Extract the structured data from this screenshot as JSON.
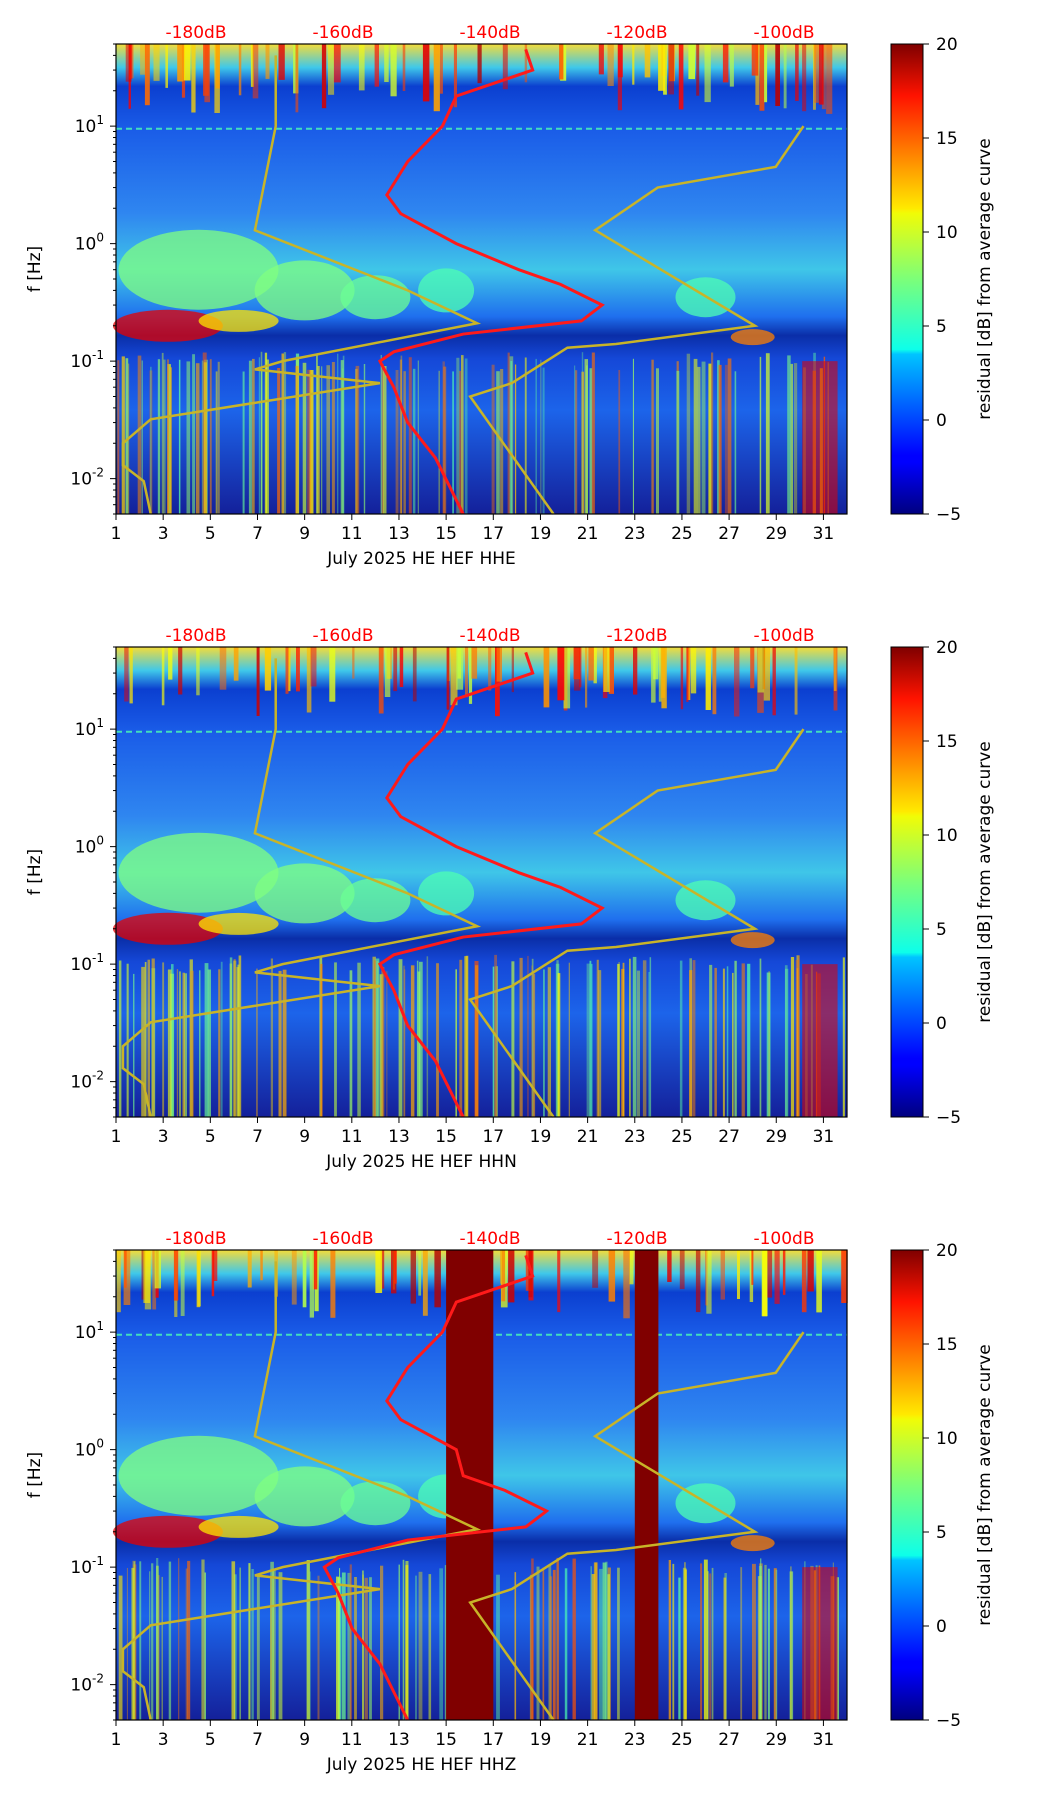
{
  "colors": {
    "model_curve": "#ff1a1a",
    "noise_models": "#c8b428",
    "db_label": "#ff0000",
    "gap": "#800000"
  },
  "colorbar": {
    "label": "residual [dB] from average curve",
    "ticks": [
      "20",
      "15",
      "10",
      "5",
      "0",
      "−5"
    ],
    "range": [
      -5,
      20
    ],
    "cmap": "jet"
  },
  "chart_data": [
    {
      "type": "heatmap",
      "title": "",
      "xlabel": "July 2025 HE HEF  HHE",
      "ylabel": "f [Hz]",
      "x_ticks": [
        "1",
        "3",
        "5",
        "7",
        "9",
        "11",
        "13",
        "15",
        "17",
        "19",
        "21",
        "23",
        "25",
        "27",
        "29",
        "31"
      ],
      "y_ticks": [
        "10^1",
        "10^0",
        "10^-1",
        "10^-2"
      ],
      "xlim": [
        1,
        32
      ],
      "ylim_hz": [
        0.005,
        50
      ],
      "top_axis_labels": [
        "-180dB",
        "-160dB",
        "-140dB",
        "-120dB",
        "-100dB"
      ],
      "gaps": []
    },
    {
      "type": "heatmap",
      "title": "",
      "xlabel": "July 2025 HE HEF  HHN",
      "ylabel": "f [Hz]",
      "x_ticks": [
        "1",
        "3",
        "5",
        "7",
        "9",
        "11",
        "13",
        "15",
        "17",
        "19",
        "21",
        "23",
        "25",
        "27",
        "29",
        "31"
      ],
      "y_ticks": [
        "10^1",
        "10^0",
        "10^-1",
        "10^-2"
      ],
      "xlim": [
        1,
        32
      ],
      "ylim_hz": [
        0.005,
        50
      ],
      "top_axis_labels": [
        "-180dB",
        "-160dB",
        "-140dB",
        "-120dB",
        "-100dB"
      ],
      "gaps": []
    },
    {
      "type": "heatmap",
      "title": "",
      "xlabel": "July 2025 HE HEF  HHZ",
      "ylabel": "f [Hz]",
      "x_ticks": [
        "1",
        "3",
        "5",
        "7",
        "9",
        "11",
        "13",
        "15",
        "17",
        "19",
        "21",
        "23",
        "25",
        "27",
        "29",
        "31"
      ],
      "y_ticks": [
        "10^1",
        "10^0",
        "10^-1",
        "10^-2"
      ],
      "xlim": [
        1,
        32
      ],
      "ylim_hz": [
        0.005,
        50
      ],
      "top_axis_labels": [
        "-180dB",
        "-160dB",
        "-140dB",
        "-120dB",
        "-100dB"
      ],
      "gaps": [
        [
          15.0,
          17.0
        ],
        [
          23.0,
          24.0
        ]
      ]
    }
  ]
}
